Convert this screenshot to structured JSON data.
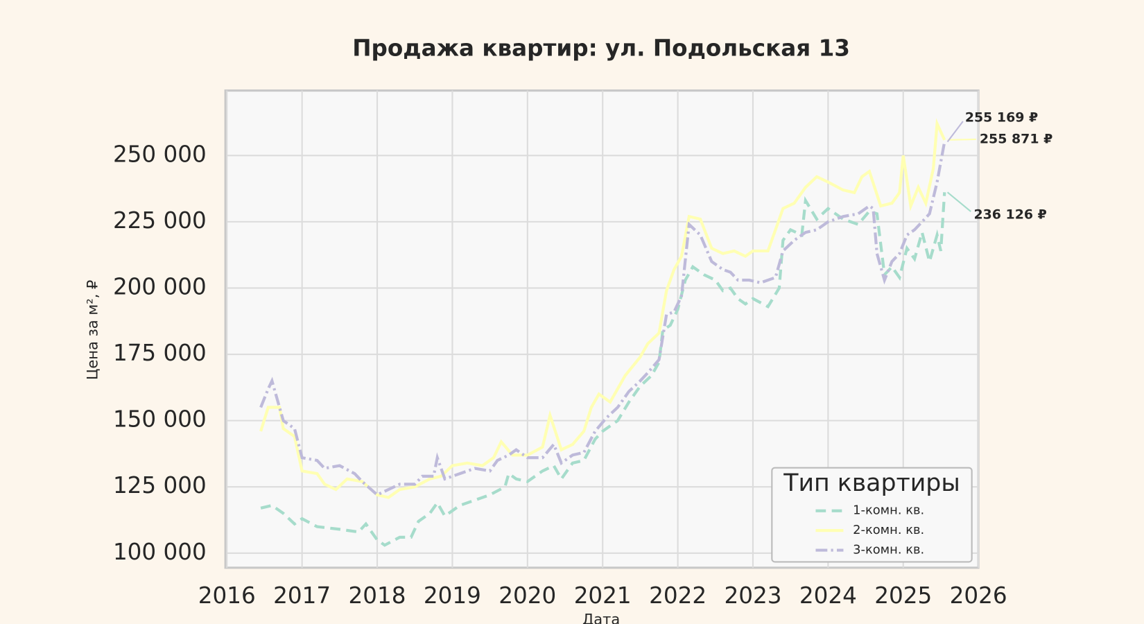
{
  "chart_data": {
    "type": "line",
    "title": "Продажа квартир: ул. Подольская 13",
    "x_label": "Дата",
    "y_label": "Цена за м², ₽",
    "xlim": [
      2016,
      2026
    ],
    "ylim": [
      94500,
      274500
    ],
    "xticks": [
      2016,
      2017,
      2018,
      2019,
      2020,
      2021,
      2022,
      2023,
      2024,
      2025,
      2026
    ],
    "yticks": [
      {
        "value": 100000,
        "label": "100 000"
      },
      {
        "value": 125000,
        "label": "125 000"
      },
      {
        "value": 150000,
        "label": "150 000"
      },
      {
        "value": 175000,
        "label": "175 000"
      },
      {
        "value": 200000,
        "label": "200 000"
      },
      {
        "value": 225000,
        "label": "225 000"
      },
      {
        "value": 250000,
        "label": "250 000"
      }
    ],
    "grid": true,
    "legend_title": "Тип квартиры",
    "legend_loc": "lower right",
    "series": [
      {
        "name": "1-комн. кв.",
        "color": "#a6dccb",
        "linestyle": "dashed",
        "end_label": "236 126 ₽",
        "x": [
          2016.45,
          2016.6,
          2016.75,
          2016.9,
          2017.0,
          2017.2,
          2017.5,
          2017.75,
          2017.85,
          2018.0,
          2018.1,
          2018.3,
          2018.45,
          2018.55,
          2018.7,
          2018.8,
          2018.9,
          2019.1,
          2019.3,
          2019.5,
          2019.7,
          2019.75,
          2019.85,
          2020.0,
          2020.2,
          2020.35,
          2020.45,
          2020.6,
          2020.75,
          2020.9,
          2021.0,
          2021.2,
          2021.35,
          2021.5,
          2021.65,
          2021.75,
          2021.8,
          2021.9,
          2022.0,
          2022.1,
          2022.2,
          2022.35,
          2022.5,
          2022.6,
          2022.7,
          2022.8,
          2022.9,
          2023.0,
          2023.2,
          2023.35,
          2023.4,
          2023.5,
          2023.65,
          2023.7,
          2023.85,
          2024.0,
          2024.2,
          2024.4,
          2024.55,
          2024.65,
          2024.75,
          2024.85,
          2024.95,
          2025.05,
          2025.15,
          2025.25,
          2025.35,
          2025.45,
          2025.5,
          2025.55
        ],
        "values": [
          117000,
          118000,
          115000,
          111000,
          113000,
          110000,
          109000,
          108000,
          111000,
          105000,
          103000,
          106000,
          106000,
          112000,
          115000,
          119000,
          114000,
          118000,
          120000,
          122000,
          125000,
          130000,
          128000,
          127000,
          131000,
          133000,
          128000,
          134000,
          135000,
          143000,
          146000,
          150000,
          157000,
          163000,
          167000,
          172000,
          184000,
          186000,
          192000,
          203000,
          208000,
          205000,
          203000,
          199000,
          200000,
          196000,
          194000,
          196000,
          193000,
          200000,
          218000,
          222000,
          220000,
          233000,
          226000,
          230000,
          226000,
          224000,
          229000,
          228000,
          205000,
          208000,
          204000,
          215000,
          211000,
          221000,
          210000,
          220000,
          214000,
          236126
        ]
      },
      {
        "name": "2-комн. кв.",
        "color": "#ffffb3",
        "linestyle": "solid",
        "end_label": "255 871 ₽",
        "x": [
          2016.45,
          2016.55,
          2016.7,
          2016.75,
          2016.9,
          2017.0,
          2017.2,
          2017.3,
          2017.45,
          2017.6,
          2017.8,
          2018.0,
          2018.15,
          2018.3,
          2018.5,
          2018.7,
          2018.85,
          2019.0,
          2019.2,
          2019.4,
          2019.55,
          2019.65,
          2019.8,
          2020.0,
          2020.2,
          2020.3,
          2020.45,
          2020.6,
          2020.75,
          2020.85,
          2020.95,
          2021.1,
          2021.3,
          2021.5,
          2021.6,
          2021.75,
          2021.85,
          2021.95,
          2022.05,
          2022.15,
          2022.3,
          2022.45,
          2022.6,
          2022.75,
          2022.9,
          2023.0,
          2023.2,
          2023.3,
          2023.4,
          2023.55,
          2023.7,
          2023.85,
          2024.0,
          2024.2,
          2024.35,
          2024.45,
          2024.55,
          2024.7,
          2024.85,
          2024.95,
          2025.0,
          2025.1,
          2025.2,
          2025.3,
          2025.4,
          2025.45,
          2025.55
        ],
        "values": [
          146000,
          155000,
          155000,
          147000,
          144000,
          131000,
          130000,
          126000,
          124000,
          128000,
          127000,
          122000,
          121000,
          124000,
          125000,
          128000,
          129000,
          133000,
          134000,
          133000,
          136000,
          142000,
          137000,
          137000,
          140000,
          152000,
          139000,
          141000,
          146000,
          155000,
          160000,
          157000,
          167000,
          174000,
          179000,
          183000,
          199000,
          207000,
          212000,
          227000,
          226000,
          215000,
          213000,
          214000,
          212000,
          214000,
          214000,
          222000,
          230000,
          232000,
          238000,
          242000,
          240000,
          237000,
          236000,
          242000,
          244000,
          231000,
          232000,
          236000,
          250000,
          231000,
          238000,
          232000,
          245000,
          262000,
          255871
        ]
      },
      {
        "name": "3-комн. кв.",
        "color": "#bebada",
        "linestyle": "dashdot",
        "end_label": "255 169 ₽",
        "x": [
          2016.45,
          2016.55,
          2016.6,
          2016.75,
          2016.9,
          2017.0,
          2017.2,
          2017.3,
          2017.5,
          2017.7,
          2017.8,
          2018.0,
          2018.15,
          2018.3,
          2018.5,
          2018.6,
          2018.75,
          2018.8,
          2018.9,
          2019.1,
          2019.3,
          2019.5,
          2019.6,
          2019.75,
          2019.85,
          2020.0,
          2020.2,
          2020.35,
          2020.45,
          2020.6,
          2020.75,
          2020.9,
          2021.05,
          2021.2,
          2021.35,
          2021.5,
          2021.6,
          2021.75,
          2021.85,
          2021.95,
          2022.05,
          2022.15,
          2022.3,
          2022.45,
          2022.6,
          2022.7,
          2022.8,
          2022.95,
          2023.1,
          2023.3,
          2023.4,
          2023.55,
          2023.7,
          2023.85,
          2024.0,
          2024.2,
          2024.4,
          2024.55,
          2024.6,
          2024.65,
          2024.75,
          2024.85,
          2024.95,
          2025.05,
          2025.15,
          2025.25,
          2025.35,
          2025.45,
          2025.55
        ],
        "values": [
          155000,
          162000,
          165000,
          150000,
          147000,
          136000,
          135000,
          132000,
          133000,
          130000,
          127000,
          122000,
          124000,
          126000,
          126000,
          129000,
          129000,
          136000,
          128000,
          130000,
          132000,
          131000,
          135000,
          137000,
          139000,
          136000,
          136000,
          141000,
          134000,
          137000,
          138000,
          146000,
          151000,
          155000,
          161000,
          165000,
          168000,
          173000,
          190000,
          191000,
          197000,
          224000,
          220000,
          210000,
          207000,
          206000,
          203000,
          203000,
          202000,
          204000,
          214000,
          218000,
          221000,
          222000,
          225000,
          227000,
          228000,
          231000,
          230000,
          213000,
          203000,
          210000,
          213000,
          220000,
          222000,
          225000,
          228000,
          240000,
          255169
        ]
      }
    ]
  }
}
